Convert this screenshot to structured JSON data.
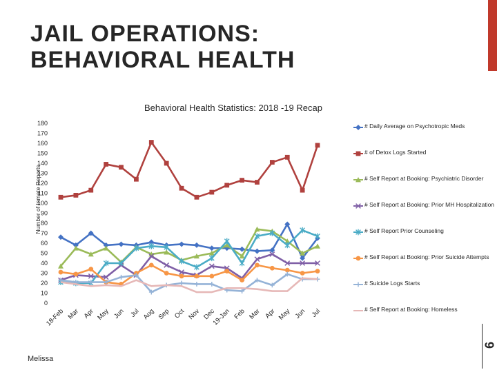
{
  "slide": {
    "title_line1": "JAIL OPERATIONS:",
    "title_line2": "BEHAVIORAL HEALTH",
    "author": "Melissa",
    "page_number": "6",
    "accent_color": "#c0392b"
  },
  "chart_data": {
    "type": "line",
    "title": "Behavioral Health Statistics:  2018 -19 Recap",
    "xlabel": "",
    "ylabel": "Number of Inmate Reports",
    "ylim": [
      0,
      180
    ],
    "yticks": [
      "0",
      "10",
      "20",
      "30",
      "40",
      "50",
      "60",
      "70",
      "80",
      "90",
      "100",
      "110",
      "120",
      "130",
      "140",
      "150",
      "160",
      "170",
      "180"
    ],
    "categories": [
      "18-Feb",
      "Mar",
      "Apr",
      "May",
      "Jun",
      "Jul",
      "Aug",
      "Sep",
      "Oct",
      "Nov",
      "Dec",
      "19-Jan",
      "Feb",
      "Mar",
      "Apr",
      "May",
      "Jun",
      "Jul"
    ],
    "legend_position": "right",
    "grid": false,
    "series": [
      {
        "name": "# Daily Average on Psychotropic Meds",
        "color": "#4472c4",
        "marker": "diamond",
        "values": [
          66,
          58,
          70,
          58,
          59,
          58,
          61,
          58,
          59,
          58,
          55,
          55,
          54,
          52,
          53,
          79,
          45,
          65
        ]
      },
      {
        "name": "# of Detox Logs Started",
        "color": "#b0413e",
        "marker": "square",
        "values": [
          106,
          108,
          113,
          139,
          136,
          124,
          161,
          140,
          115,
          106,
          111,
          118,
          123,
          121,
          141,
          146,
          113,
          158
        ]
      },
      {
        "name": "# Self Report at Booking: Psychiatric Disorder",
        "color": "#9bbb59",
        "marker": "triangle",
        "values": [
          37,
          55,
          49,
          55,
          41,
          56,
          49,
          51,
          43,
          47,
          50,
          58,
          47,
          74,
          72,
          62,
          50,
          57
        ]
      },
      {
        "name": "# Self Report at Booking: Prior MH Hospitalization",
        "color": "#7f5fa6",
        "marker": "x",
        "values": [
          23,
          28,
          27,
          26,
          38,
          28,
          47,
          38,
          31,
          28,
          37,
          35,
          25,
          44,
          49,
          40,
          40,
          40
        ]
      },
      {
        "name": "# Self Report Prior Counseling",
        "color": "#4bacc6",
        "marker": "star",
        "values": [
          21,
          20,
          20,
          40,
          40,
          55,
          57,
          56,
          42,
          36,
          45,
          62,
          40,
          67,
          70,
          58,
          73,
          67
        ]
      },
      {
        "name": "# Self Report at Booking: Prior Suicide Attempts",
        "color": "#f79646",
        "marker": "circle",
        "values": [
          31,
          29,
          34,
          21,
          19,
          30,
          38,
          30,
          27,
          27,
          27,
          32,
          23,
          38,
          35,
          33,
          30,
          32
        ]
      },
      {
        "name": "# Suicide Logs Starts",
        "color": "#95b3d7",
        "marker": "plus",
        "values": [
          23,
          21,
          21,
          21,
          26,
          28,
          11,
          18,
          20,
          19,
          19,
          13,
          12,
          23,
          18,
          29,
          24,
          24
        ]
      },
      {
        "name": "# Self Report at Booking: Homeless",
        "color": "#e6b8b7",
        "marker": "none",
        "values": [
          21,
          19,
          17,
          18,
          17,
          23,
          17,
          18,
          17,
          11,
          11,
          15,
          15,
          14,
          12,
          12,
          25,
          24
        ]
      }
    ]
  }
}
